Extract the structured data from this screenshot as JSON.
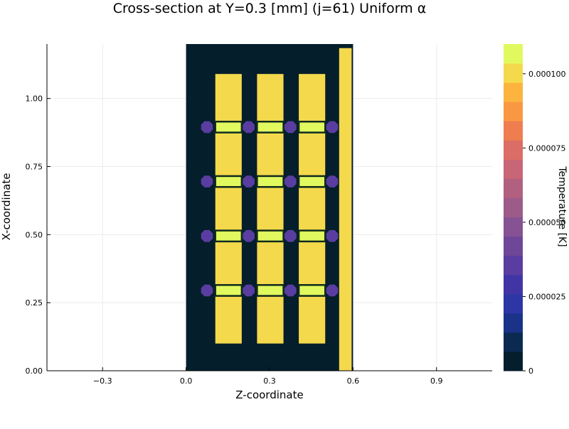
{
  "chart_data": {
    "type": "heatmap",
    "title": "Cross-section at Y=0.3 [mm] (j=61) Uniform α",
    "xlabel": "Z-coordinate",
    "ylabel": "X-coordinate",
    "xlim": [
      -0.5,
      1.1
    ],
    "ylim": [
      0.0,
      1.2
    ],
    "xticks": [
      -0.3,
      0.0,
      0.3,
      0.6,
      0.9
    ],
    "xtick_labels": [
      "−0.3",
      "0.0",
      "0.3",
      "0.6",
      "0.9"
    ],
    "yticks": [
      0.0,
      0.25,
      0.5,
      0.75,
      1.0
    ],
    "ytick_labels": [
      "0.00",
      "0.25",
      "0.50",
      "0.75",
      "1.00"
    ],
    "grid": true,
    "colorbar": {
      "label": "Temperature [K]",
      "range": [
        0,
        0.00011
      ],
      "levels": 16,
      "ticks": [
        0,
        2.5e-05,
        5e-05,
        7.5e-05,
        0.0001
      ],
      "tick_labels": [
        "0",
        "0.000025",
        "0.000050",
        "0.000075",
        "0.000100"
      ],
      "colors": [
        "#041e2c",
        "#0b2a52",
        "#1a3288",
        "#2d36a4",
        "#4135a5",
        "#5a3da0",
        "#6f4798",
        "#865293",
        "#9c5b89",
        "#b1607f",
        "#c86576",
        "#db6d66",
        "#ef7d50",
        "#f99842",
        "#fdb43f",
        "#f4d94c",
        "#e1f95e"
      ]
    },
    "regions": [
      {
        "z": [
          0.0,
          0.6
        ],
        "x": [
          0.0,
          1.2
        ],
        "value": 0.0
      },
      {
        "z": [
          0.55,
          0.595
        ],
        "x": [
          0.0,
          1.185
        ],
        "value": 9.8e-05
      },
      {
        "z": [
          0.105,
          0.2
        ],
        "x": [
          0.1,
          1.09
        ],
        "value": 9.8e-05
      },
      {
        "z": [
          0.255,
          0.35
        ],
        "x": [
          0.1,
          1.09
        ],
        "value": 9.8e-05
      },
      {
        "z": [
          0.405,
          0.5
        ],
        "x": [
          0.1,
          1.09
        ],
        "value": 9.8e-05
      },
      {
        "z": [
          0.105,
          0.2
        ],
        "x": [
          0.275,
          0.315
        ],
        "value": 0.000108
      },
      {
        "z": [
          0.255,
          0.35
        ],
        "x": [
          0.275,
          0.315
        ],
        "value": 0.000108
      },
      {
        "z": [
          0.405,
          0.5
        ],
        "x": [
          0.275,
          0.315
        ],
        "value": 0.000108
      },
      {
        "z": [
          0.105,
          0.2
        ],
        "x": [
          0.475,
          0.515
        ],
        "value": 0.000108
      },
      {
        "z": [
          0.255,
          0.35
        ],
        "x": [
          0.475,
          0.515
        ],
        "value": 0.000108
      },
      {
        "z": [
          0.405,
          0.5
        ],
        "x": [
          0.475,
          0.515
        ],
        "value": 0.000108
      },
      {
        "z": [
          0.105,
          0.2
        ],
        "x": [
          0.675,
          0.715
        ],
        "value": 0.000108
      },
      {
        "z": [
          0.255,
          0.35
        ],
        "x": [
          0.675,
          0.715
        ],
        "value": 0.000108
      },
      {
        "z": [
          0.405,
          0.5
        ],
        "x": [
          0.675,
          0.715
        ],
        "value": 0.000108
      },
      {
        "z": [
          0.105,
          0.2
        ],
        "x": [
          0.875,
          0.915
        ],
        "value": 0.000108
      },
      {
        "z": [
          0.255,
          0.35
        ],
        "x": [
          0.875,
          0.915
        ],
        "value": 0.000108
      },
      {
        "z": [
          0.405,
          0.5
        ],
        "x": [
          0.875,
          0.915
        ],
        "value": 0.000108
      }
    ],
    "nodes": {
      "value": 3.8e-05,
      "z": [
        0.075,
        0.225,
        0.375,
        0.525
      ],
      "x": [
        0.295,
        0.495,
        0.695,
        0.895
      ]
    }
  }
}
